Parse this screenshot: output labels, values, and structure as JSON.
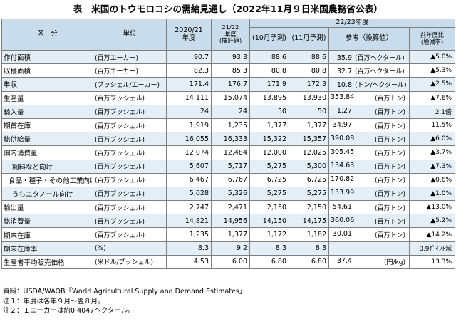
{
  "title": "表　米国のトウモロコシの需給見通し（2022年11月９日米国農務省公表）",
  "header": {
    "category": "区　分",
    "unit": "－単位－",
    "y2020": "2020/21\n年度",
    "y2021": "21/22\n年度\n(推計値)",
    "y2022_group": "22/23年度",
    "oct": "(10月予測)",
    "nov": "(11月予測)",
    "ref": "参考（換算値）",
    "yoy": "前年度比\n(増減率)"
  },
  "rows": [
    {
      "label": "作付面積",
      "indent": 0,
      "unit": "(百万エーカー)",
      "v2020": "90.7",
      "v2021": "93.3",
      "oct": "88.6",
      "nov": "88.6",
      "ref_value": "35.9",
      "ref_unit": "(百万ヘクタール)",
      "ref_unit_right": false,
      "yoy": "▲5.0%",
      "band": true
    },
    {
      "label": "収穫面積",
      "indent": 0,
      "unit": "(百万エーカー)",
      "v2020": "82.3",
      "v2021": "85.3",
      "oct": "80.8",
      "nov": "80.8",
      "ref_value": "32.7",
      "ref_unit": "(百万ヘクタール)",
      "ref_unit_right": false,
      "yoy": "▲5.3%",
      "band": false
    },
    {
      "label": "単収",
      "indent": 0,
      "unit": "(ブッシェル/エーカー)",
      "v2020": "171.4",
      "v2021": "176.7",
      "oct": "171.9",
      "nov": "172.3",
      "ref_value": "10.8",
      "ref_unit": "(トン/ヘクタール)",
      "ref_unit_right": false,
      "yoy": "▲2.5%",
      "band": true
    },
    {
      "label": "生産量",
      "indent": 0,
      "unit": "(百万ブッシェル)",
      "v2020": "14,111",
      "v2021": "15,074",
      "oct": "13,895",
      "nov": "13,930",
      "ref_value": "353.84",
      "ref_unit": "(百万トン)",
      "ref_unit_right": true,
      "yoy": "▲7.6%",
      "band": false
    },
    {
      "label": "輸入量",
      "indent": 0,
      "unit": "(百万ブッシェル)",
      "v2020": "24",
      "v2021": "24",
      "oct": "50",
      "nov": "50",
      "ref_value": "1.27",
      "ref_unit": "(百万トン)",
      "ref_unit_right": true,
      "yoy": "2.1倍",
      "band": true
    },
    {
      "label": "期首在庫",
      "indent": 0,
      "unit": "(百万ブッシェル)",
      "v2020": "1,919",
      "v2021": "1,235",
      "oct": "1,377",
      "nov": "1,377",
      "ref_value": "34.97",
      "ref_unit": "(百万トン)",
      "ref_unit_right": true,
      "yoy": "11.5%",
      "band": false
    },
    {
      "label": "総供給量",
      "indent": 0,
      "unit": "(百万ブッシェル)",
      "v2020": "16,055",
      "v2021": "16,333",
      "oct": "15,322",
      "nov": "15,357",
      "ref_value": "390.08",
      "ref_unit": "(百万トン)",
      "ref_unit_right": true,
      "yoy": "▲6.0%",
      "band": true
    },
    {
      "label": "国内消費量",
      "indent": 0,
      "unit": "(百万ブッシェル)",
      "v2020": "12,074",
      "v2021": "12,484",
      "oct": "12,000",
      "nov": "12,025",
      "ref_value": "305.45",
      "ref_unit": "(百万トン)",
      "ref_unit_right": true,
      "yoy": "▲3.7%",
      "band": false
    },
    {
      "label": "飼料など向け",
      "indent": 1,
      "unit": "(百万ブッシェル)",
      "v2020": "5,607",
      "v2021": "5,717",
      "oct": "5,275",
      "nov": "5,300",
      "ref_value": "134.63",
      "ref_unit": "(百万トン)",
      "ref_unit_right": true,
      "yoy": "▲7.3%",
      "band": true
    },
    {
      "label": "食品・種子・その他工業向け",
      "indent": 2,
      "unit": "(百万ブッシェル)",
      "v2020": "6,467",
      "v2021": "6,767",
      "oct": "6,725",
      "nov": "6,725",
      "ref_value": "170.82",
      "ref_unit": "(百万トン)",
      "ref_unit_right": true,
      "yoy": "▲0.6%",
      "band": false
    },
    {
      "label": "うちエタノール向け",
      "indent": 1,
      "unit": "(百万ブッシェル)",
      "v2020": "5,028",
      "v2021": "5,326",
      "oct": "5,275",
      "nov": "5,275",
      "ref_value": "133.99",
      "ref_unit": "(百万トン)",
      "ref_unit_right": true,
      "yoy": "▲1.0%",
      "band": true
    },
    {
      "label": "輸出量",
      "indent": 0,
      "unit": "(百万ブッシェル)",
      "v2020": "2,747",
      "v2021": "2,471",
      "oct": "2,150",
      "nov": "2,150",
      "ref_value": "54.61",
      "ref_unit": "(百万トン)",
      "ref_unit_right": true,
      "yoy": "▲13.0%",
      "band": false
    },
    {
      "label": "総消費量",
      "indent": 0,
      "unit": "(百万ブッシェル)",
      "v2020": "14,821",
      "v2021": "14,956",
      "oct": "14,150",
      "nov": "14,175",
      "ref_value": "360.06",
      "ref_unit": "(百万トン)",
      "ref_unit_right": true,
      "yoy": "▲5.2%",
      "band": true
    },
    {
      "label": "期末在庫",
      "indent": 0,
      "unit": "(百万ブッシェル)",
      "v2020": "1,235",
      "v2021": "1,377",
      "oct": "1,172",
      "nov": "1,182",
      "ref_value": "30.01",
      "ref_unit": "(百万トン)",
      "ref_unit_right": true,
      "yoy": "▲14.2%",
      "band": false
    },
    {
      "label": "期末在庫率",
      "indent": 0,
      "unit": "(%)",
      "v2020": "8.3",
      "v2021": "9.2",
      "oct": "8.3",
      "nov": "8.3",
      "ref_value": "",
      "ref_unit": "",
      "ref_unit_right": false,
      "yoy": "0.9ﾎﾟｲﾝﾄ減",
      "band": true
    },
    {
      "label": "生産者平均販売価格",
      "indent": 0,
      "unit": "(米ドル/ブッシェル)",
      "v2020": "4.53",
      "v2021": "6.00",
      "oct": "6.80",
      "nov": "6.80",
      "ref_value": "37.4",
      "ref_unit": "(円/kg)",
      "ref_unit_right": true,
      "yoy": "13.3%",
      "band": false
    }
  ],
  "notes": [
    "資料：USDA/WAOB「World Agricultural Supply and Demand Estimates」",
    "注１：年度は各年９月～翌８月。",
    "注２：１エーカーは約0.4047ヘクタール。"
  ]
}
